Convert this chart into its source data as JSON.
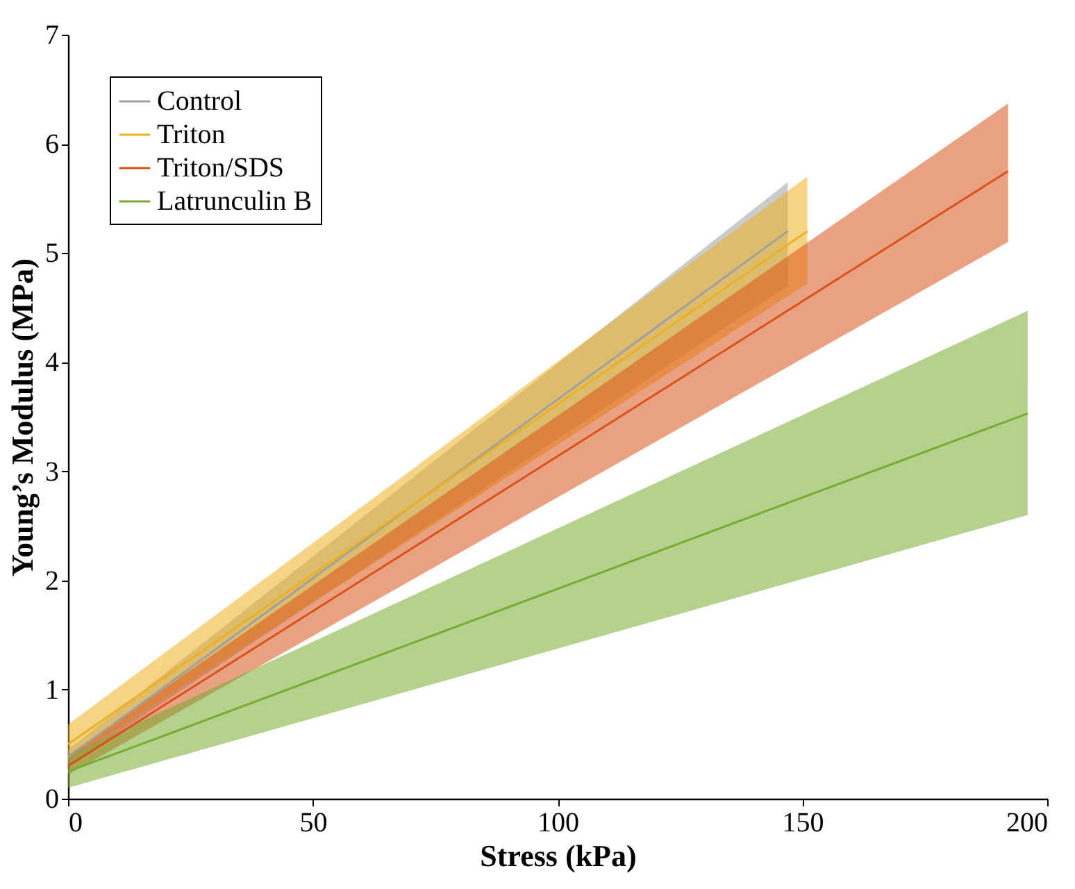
{
  "chart_data": {
    "type": "line",
    "xlabel": "Stress (kPa)",
    "ylabel": "Young’s Modulus (MPa)",
    "xlim": [
      0,
      200
    ],
    "ylim": [
      0,
      7
    ],
    "xticks": [
      0,
      50,
      100,
      150,
      200
    ],
    "yticks": [
      0,
      1,
      2,
      3,
      4,
      5,
      6,
      7
    ],
    "grid": false,
    "legend": "top left",
    "marker": "none",
    "line_style": "solid",
    "series": [
      {
        "name": "Control",
        "color": "#a0a0a0",
        "x": [
          0,
          147
        ],
        "values": [
          0.38,
          5.2
        ],
        "lower": [
          0.3,
          4.7
        ],
        "upper": [
          0.45,
          5.65
        ]
      },
      {
        "name": "Triton",
        "color": "#edb120",
        "x": [
          0,
          151
        ],
        "values": [
          0.5,
          5.2
        ],
        "lower": [
          0.35,
          4.72
        ],
        "upper": [
          0.68,
          5.7
        ]
      },
      {
        "name": "Triton/SDS",
        "color": "#d95319",
        "x": [
          0,
          192
        ],
        "values": [
          0.3,
          5.75
        ],
        "lower": [
          0.22,
          5.1
        ],
        "upper": [
          0.4,
          6.37
        ]
      },
      {
        "name": "Latrunculin B",
        "color": "#77ac30",
        "x": [
          0,
          196
        ],
        "values": [
          0.25,
          3.53
        ],
        "lower": [
          0.1,
          2.6
        ],
        "upper": [
          0.4,
          4.47
        ]
      }
    ]
  }
}
